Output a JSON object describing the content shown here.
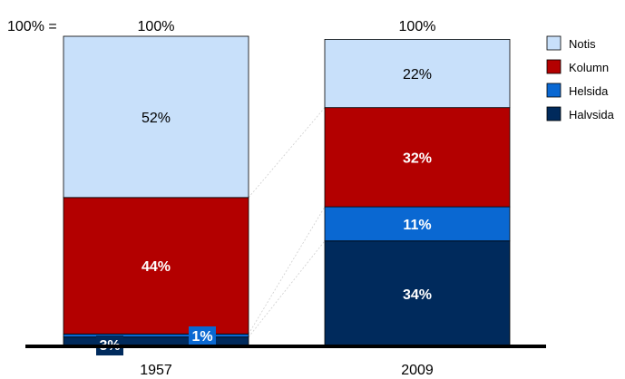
{
  "chart_data": {
    "type": "bar",
    "stacked": true,
    "percent": true,
    "total_prefix": "100% =",
    "categories": [
      "1957",
      "2009"
    ],
    "totals": [
      "100%",
      "100%"
    ],
    "ylim": [
      0,
      100
    ],
    "grid": false,
    "legend_position": "top-right",
    "series": [
      {
        "name": "Halvsida",
        "color": "#002a5c",
        "values": [
          3,
          34
        ],
        "labels": [
          "3%",
          "34%"
        ]
      },
      {
        "name": "Helsida",
        "color": "#0a68d2",
        "values": [
          1,
          11
        ],
        "labels": [
          "1%",
          "11%"
        ]
      },
      {
        "name": "Kolumn",
        "color": "#b30000",
        "values": [
          44,
          32
        ],
        "labels": [
          "44%",
          "32%"
        ]
      },
      {
        "name": "Notis",
        "color": "#c8e0fa",
        "values": [
          52,
          22
        ],
        "labels": [
          "52%",
          "22%"
        ]
      }
    ],
    "legend": [
      "Notis",
      "Kolumn",
      "Helsida",
      "Halvsida"
    ]
  }
}
